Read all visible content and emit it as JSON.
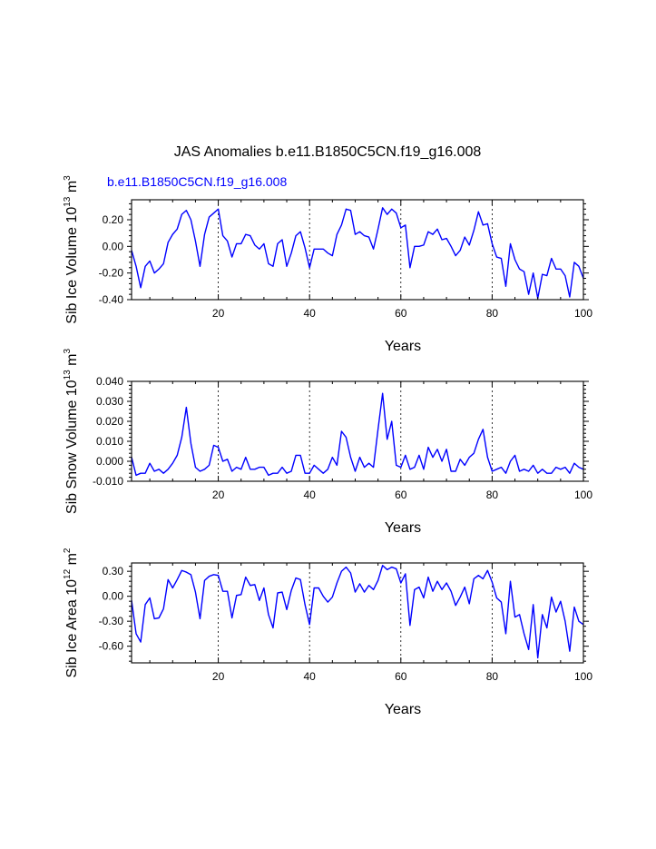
{
  "title": "JAS Anomalies b.e11.B1850C5CN.f19_g16.008",
  "subtitle": "b.e11.B1850C5CN.f19_g16.008",
  "colors": {
    "series": "#0000ff",
    "subtitle": "#0000ff",
    "axes": "#000000"
  },
  "chart_data": [
    {
      "type": "line",
      "name": "Sib Ice Volume",
      "ylabel_main": "Sib Ice Volume 10",
      "ylabel_exp": "13",
      "ylabel_unit": " m",
      "ylabel_unit_exp": "3",
      "xlabel": "Years",
      "xlim": [
        1,
        100
      ],
      "ylim": [
        -0.4,
        0.35
      ],
      "xticks": [
        20,
        40,
        60,
        80,
        100
      ],
      "yticks": [
        -0.4,
        -0.2,
        0.0,
        0.2
      ],
      "ytick_labels": [
        "-0.40",
        "-0.20",
        "0.00",
        "0.20"
      ],
      "grid": "dashed vertical at x ticks",
      "x_start": 1,
      "values": [
        -0.03,
        -0.15,
        -0.31,
        -0.15,
        -0.11,
        -0.2,
        -0.17,
        -0.13,
        0.03,
        0.09,
        0.13,
        0.24,
        0.27,
        0.2,
        0.04,
        -0.15,
        0.09,
        0.22,
        0.25,
        0.28,
        0.08,
        0.04,
        -0.08,
        0.02,
        0.02,
        0.09,
        0.08,
        0.01,
        -0.02,
        0.02,
        -0.13,
        -0.15,
        0.02,
        0.05,
        -0.15,
        -0.05,
        0.08,
        0.11,
        -0.01,
        -0.16,
        -0.02,
        -0.02,
        -0.02,
        -0.05,
        -0.07,
        0.09,
        0.16,
        0.28,
        0.27,
        0.09,
        0.11,
        0.08,
        0.07,
        -0.02,
        0.13,
        0.29,
        0.24,
        0.28,
        0.25,
        0.14,
        0.16,
        -0.16,
        0.0,
        0.0,
        0.01,
        0.11,
        0.09,
        0.13,
        0.05,
        0.06,
        0.0,
        -0.07,
        -0.03,
        0.07,
        0.01,
        0.12,
        0.26,
        0.16,
        0.17,
        0.02,
        -0.08,
        -0.09,
        -0.3,
        0.02,
        -0.1,
        -0.17,
        -0.19,
        -0.36,
        -0.2,
        -0.39,
        -0.21,
        -0.22,
        -0.09,
        -0.17,
        -0.17,
        -0.22,
        -0.38,
        -0.12,
        -0.15,
        -0.24
      ]
    },
    {
      "type": "line",
      "name": "Sib Snow Volume",
      "ylabel_main": "Sib Snow Volume 10",
      "ylabel_exp": "13",
      "ylabel_unit": " m",
      "ylabel_unit_exp": "3",
      "xlabel": "Years",
      "xlim": [
        1,
        100
      ],
      "ylim": [
        -0.01,
        0.04
      ],
      "xticks": [
        20,
        40,
        60,
        80,
        100
      ],
      "yticks": [
        -0.01,
        0.0,
        0.01,
        0.02,
        0.03,
        0.04
      ],
      "ytick_labels": [
        "-0.010",
        "0.000",
        "0.010",
        "0.020",
        "0.030",
        "0.040"
      ],
      "grid": "dashed vertical at x ticks",
      "x_start": 1,
      "values": [
        0.002,
        -0.007,
        -0.006,
        -0.006,
        -0.001,
        -0.005,
        -0.004,
        -0.006,
        -0.004,
        -0.001,
        0.003,
        0.012,
        0.027,
        0.009,
        -0.003,
        -0.005,
        -0.004,
        -0.002,
        0.008,
        0.007,
        0.0,
        0.001,
        -0.005,
        -0.003,
        -0.004,
        0.002,
        -0.004,
        -0.004,
        -0.003,
        -0.003,
        -0.007,
        -0.006,
        -0.006,
        -0.003,
        -0.006,
        -0.005,
        0.003,
        0.003,
        -0.006,
        -0.006,
        -0.002,
        -0.004,
        -0.006,
        -0.004,
        0.002,
        -0.002,
        0.015,
        0.012,
        0.002,
        -0.005,
        0.002,
        -0.003,
        -0.001,
        -0.003,
        0.016,
        0.034,
        0.011,
        0.02,
        -0.002,
        -0.003,
        0.003,
        -0.004,
        -0.003,
        0.003,
        -0.004,
        0.007,
        0.002,
        0.006,
        0.0,
        0.006,
        -0.005,
        -0.005,
        0.001,
        -0.002,
        0.002,
        0.004,
        0.011,
        0.016,
        0.002,
        -0.005,
        -0.004,
        -0.003,
        -0.006,
        0.0,
        0.003,
        -0.005,
        -0.004,
        -0.005,
        -0.002,
        -0.006,
        -0.004,
        -0.006,
        -0.006,
        -0.003,
        -0.004,
        -0.003,
        -0.006,
        -0.001,
        -0.003,
        -0.004
      ]
    },
    {
      "type": "line",
      "name": "Sib Ice Area",
      "ylabel_main": "Sib Ice Area 10",
      "ylabel_exp": "12",
      "ylabel_unit": " m",
      "ylabel_unit_exp": "2",
      "xlabel": "Years",
      "xlim": [
        1,
        100
      ],
      "ylim": [
        -0.8,
        0.4
      ],
      "xticks": [
        20,
        40,
        60,
        80,
        100
      ],
      "yticks": [
        -0.6,
        -0.3,
        0.0,
        0.3
      ],
      "ytick_labels": [
        "-0.60",
        "-0.30",
        "0.00",
        "0.30"
      ],
      "grid": "dashed vertical at x ticks",
      "x_start": 1,
      "values": [
        -0.05,
        -0.45,
        -0.55,
        -0.1,
        -0.02,
        -0.27,
        -0.26,
        -0.15,
        0.2,
        0.1,
        0.2,
        0.31,
        0.29,
        0.26,
        0.05,
        -0.27,
        0.19,
        0.24,
        0.26,
        0.25,
        0.06,
        0.06,
        -0.26,
        0.01,
        0.02,
        0.23,
        0.13,
        0.14,
        -0.05,
        0.1,
        -0.22,
        -0.38,
        0.04,
        0.05,
        -0.16,
        0.07,
        0.22,
        0.2,
        -0.1,
        -0.34,
        0.1,
        0.1,
        0.0,
        -0.07,
        -0.01,
        0.16,
        0.3,
        0.35,
        0.28,
        0.05,
        0.15,
        0.05,
        0.13,
        0.08,
        0.19,
        0.37,
        0.32,
        0.35,
        0.33,
        0.16,
        0.27,
        -0.35,
        0.08,
        0.11,
        -0.02,
        0.23,
        0.06,
        0.18,
        0.08,
        0.16,
        0.06,
        -0.11,
        -0.01,
        0.11,
        -0.09,
        0.21,
        0.25,
        0.21,
        0.31,
        0.17,
        -0.02,
        -0.07,
        -0.45,
        0.18,
        -0.25,
        -0.22,
        -0.45,
        -0.64,
        -0.1,
        -0.74,
        -0.22,
        -0.38,
        -0.01,
        -0.19,
        -0.06,
        -0.3,
        -0.66,
        -0.13,
        -0.3,
        -0.34
      ]
    }
  ]
}
